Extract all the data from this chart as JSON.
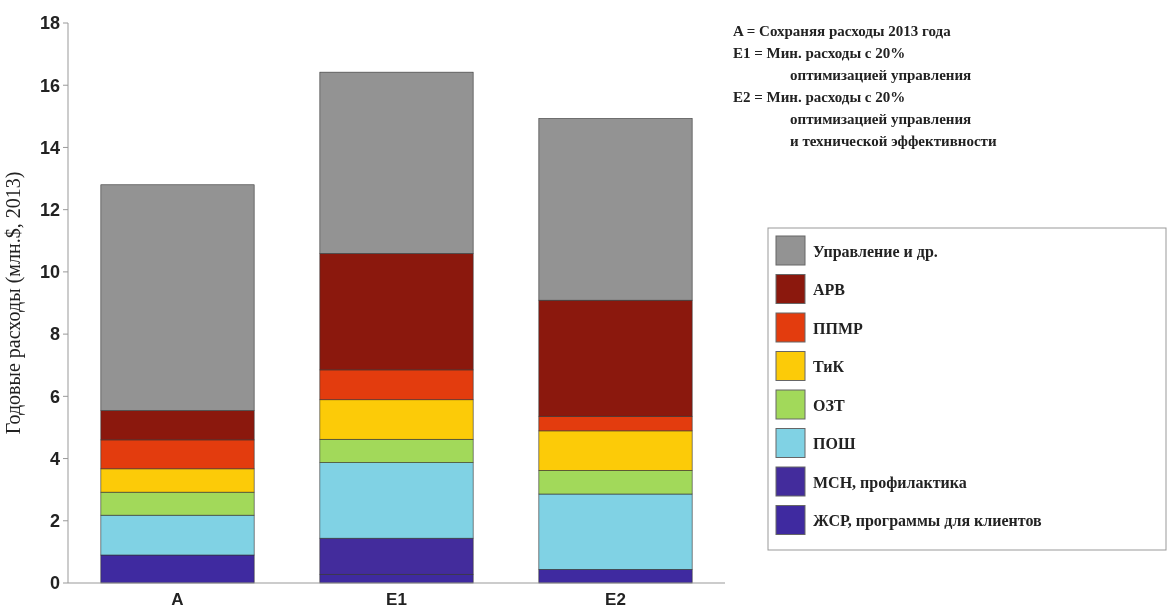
{
  "chart_data": {
    "type": "bar",
    "stacked": true,
    "ylabel": "Годовые расходы (млн.$, 2013)",
    "categories": [
      "A",
      "E1",
      "E2"
    ],
    "ylim": [
      0,
      18
    ],
    "yticks": [
      0,
      2,
      4,
      6,
      8,
      10,
      12,
      14,
      16,
      18
    ],
    "legend": "right",
    "grid": false,
    "series": [
      {
        "name": "ЖСР, программы для клиентов",
        "color": "#3f2aa0",
        "values": [
          0.9,
          0.28,
          0.44
        ]
      },
      {
        "name": "МСН, профилактика",
        "color": "#432c9c",
        "values": [
          0,
          1.16,
          0
        ]
      },
      {
        "name": "ПОШ",
        "color": "#80d2e4",
        "values": [
          1.28,
          2.43,
          2.42
        ]
      },
      {
        "name": "ОЗТ",
        "color": "#a2d95a",
        "values": [
          0.74,
          0.75,
          0.76
        ]
      },
      {
        "name": "ТиК",
        "color": "#fccb08",
        "values": [
          0.75,
          1.27,
          1.27
        ]
      },
      {
        "name": "ППМР",
        "color": "#e33c0e",
        "values": [
          0.93,
          0.96,
          0.47
        ]
      },
      {
        "name": "АРВ",
        "color": "#8b180d",
        "values": [
          0.94,
          3.74,
          3.73
        ]
      },
      {
        "name": "Управление и др.",
        "color": "#939393",
        "values": [
          7.26,
          5.83,
          5.84
        ]
      }
    ],
    "annotations": [
      "A = Сохраняя расходы 2013 года",
      "E1 = Мин. расходы с 20%\nоптимизацией управления",
      "E2 = Мин. расходы с 20%\nоптимизацией управления\nи технической эффективности"
    ]
  }
}
